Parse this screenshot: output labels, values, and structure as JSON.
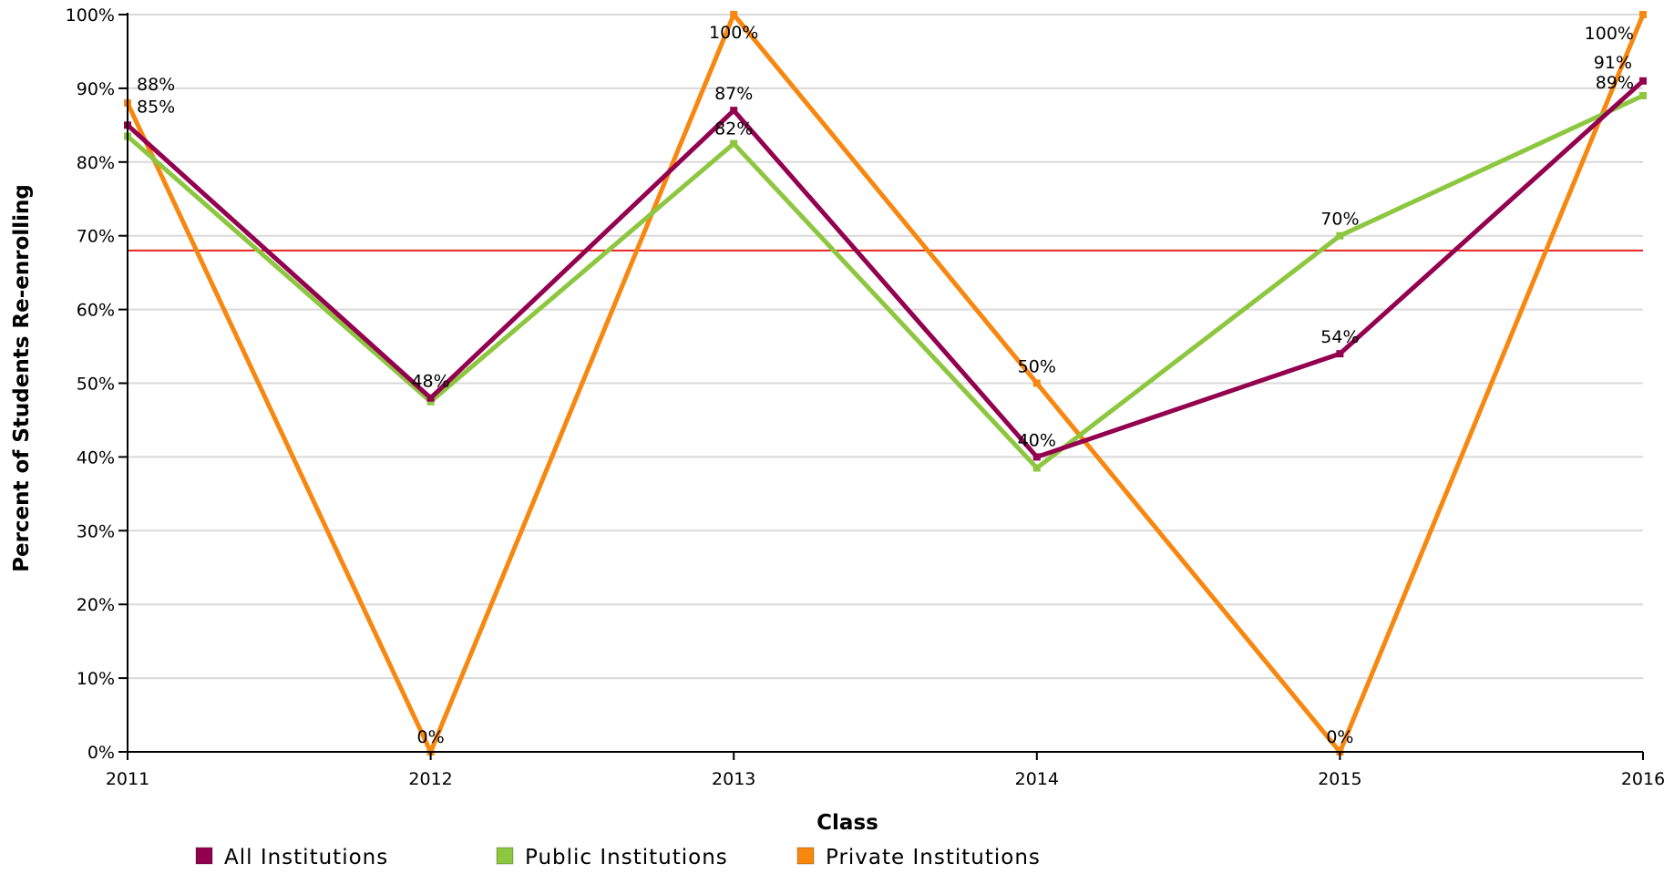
{
  "chart_data": {
    "type": "line",
    "title": "",
    "xlabel": "Class",
    "ylabel": "Percent of Students Re-enrolling",
    "x": [
      2011,
      2012,
      2013,
      2014,
      2015,
      2016
    ],
    "x_tick_labels": [
      "2011",
      "2012",
      "2013",
      "2014",
      "2015",
      "2016"
    ],
    "ylim": [
      0,
      100
    ],
    "y_ticks": [
      0,
      10,
      20,
      30,
      40,
      50,
      60,
      70,
      80,
      90,
      100
    ],
    "y_tick_labels": [
      "0%",
      "10%",
      "20%",
      "30%",
      "40%",
      "50%",
      "60%",
      "70%",
      "80%",
      "90%",
      "100%"
    ],
    "grid": true,
    "legend_position": "bottom",
    "reference_line": {
      "y": 68,
      "color": "#e8231f"
    },
    "series": [
      {
        "name": "All Institutions",
        "color": "#93004f",
        "values": [
          85,
          48,
          87,
          40,
          54,
          91
        ],
        "labels": [
          "85%",
          "48%",
          "87%",
          "40%",
          "54%",
          "91%"
        ]
      },
      {
        "name": "Public Institutions",
        "color": "#8dc63f",
        "values": [
          83.5,
          47.5,
          82.5,
          38.5,
          70,
          89
        ],
        "labels": [
          "",
          "",
          "82%",
          "",
          "70%",
          "89%"
        ]
      },
      {
        "name": "Private Institutions",
        "color": "#f7870f",
        "values": [
          88,
          0,
          100,
          50,
          0,
          100
        ],
        "labels": [
          "88%",
          "0%",
          "100%",
          "50%",
          "0%",
          "100%"
        ]
      }
    ]
  }
}
